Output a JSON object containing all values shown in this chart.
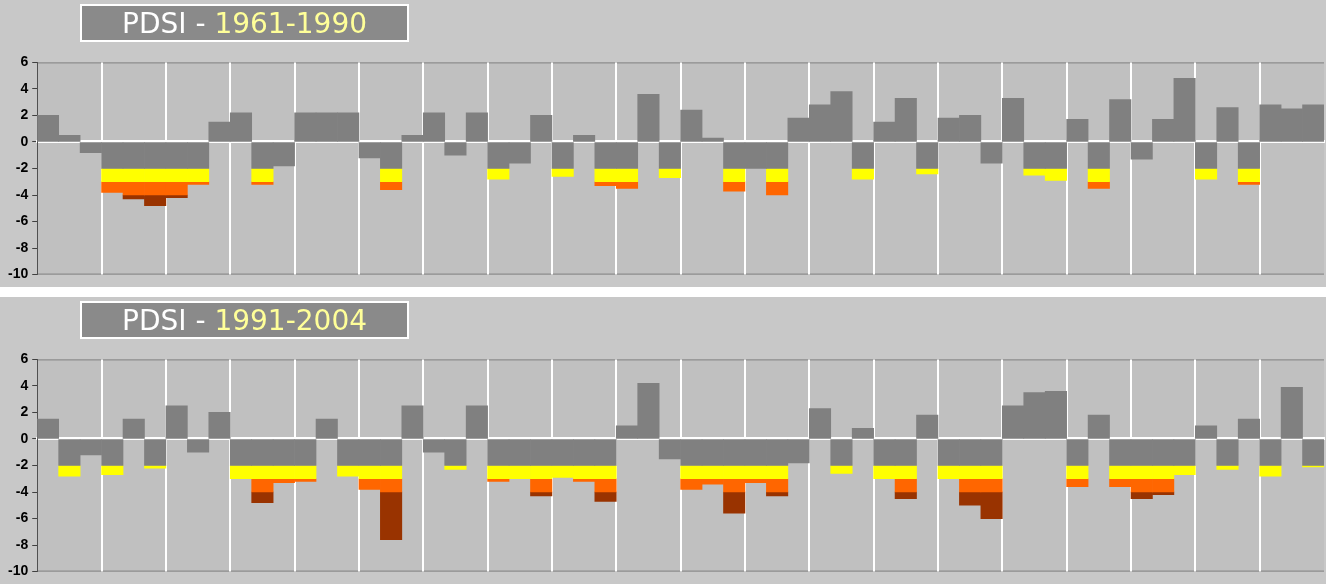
{
  "chart_data": [
    {
      "type": "bar",
      "title": "PDSI - 1961-1990",
      "stacked": true,
      "grid": "x",
      "tick_labels": "y",
      "categories": [
        null,
        null,
        null,
        null,
        null,
        null,
        null,
        null,
        null,
        null,
        null,
        null,
        null,
        null,
        null,
        null,
        null,
        null,
        null,
        null,
        null,
        null,
        null,
        null,
        null,
        null,
        null,
        null,
        null,
        null,
        null,
        null,
        null,
        null,
        null,
        null,
        null,
        null,
        null,
        null,
        null,
        null,
        null,
        null,
        null,
        null,
        null,
        null,
        null,
        null,
        null,
        null,
        null,
        null,
        null,
        null,
        null,
        null,
        null,
        null
      ],
      "ylim": [
        -10,
        6
      ],
      "yticks": [
        -10,
        -8,
        -6,
        -4,
        -2,
        0,
        2,
        4,
        6
      ],
      "series": [
        {
          "color": "#808080",
          "values": [
            2.0,
            0.5,
            -0.8,
            -2,
            -2,
            -2,
            -2,
            -2,
            1.5,
            2.2,
            -2,
            -1.8,
            2.2,
            2.2,
            2.2,
            -1.2,
            -2,
            0.5,
            2.2,
            -1.0,
            2.2,
            -2,
            -1.6,
            2.0,
            -2,
            0.5,
            -2,
            -2,
            3.6,
            -2,
            2.4,
            0.3,
            -2,
            -2,
            -2,
            1.8,
            2.8,
            3.8,
            -2,
            1.5,
            3.3,
            -2,
            1.8,
            2.0,
            -1.6,
            3.3,
            -2,
            -2,
            1.7,
            -2,
            3.2,
            -1.3,
            1.7,
            4.8,
            -2,
            2.6,
            -2,
            2.8,
            2.5,
            2.8
          ]
        },
        {
          "color": "#ffff00",
          "values": [
            null,
            null,
            null,
            -1,
            -1,
            -1,
            -1,
            -1,
            null,
            null,
            -1,
            null,
            null,
            null,
            null,
            null,
            -1,
            null,
            null,
            null,
            null,
            -0.8,
            null,
            null,
            -0.6,
            null,
            -1,
            -1,
            null,
            -0.7,
            null,
            null,
            -1,
            null,
            -1,
            null,
            null,
            null,
            -0.8,
            null,
            null,
            -0.4,
            null,
            null,
            null,
            null,
            -0.5,
            -0.9,
            null,
            -1,
            null,
            null,
            null,
            null,
            -0.8,
            null,
            -1,
            null,
            null,
            null
          ]
        },
        {
          "color": "#ff6600",
          "values": [
            null,
            null,
            null,
            -0.8,
            -1,
            -1,
            -1,
            -0.2,
            null,
            null,
            -0.2,
            null,
            null,
            null,
            null,
            null,
            -0.6,
            null,
            null,
            null,
            null,
            null,
            null,
            null,
            null,
            null,
            -0.3,
            -0.5,
            null,
            null,
            null,
            null,
            -0.7,
            null,
            -1,
            null,
            null,
            null,
            null,
            null,
            null,
            null,
            null,
            null,
            null,
            null,
            null,
            null,
            null,
            -0.5,
            null,
            null,
            null,
            null,
            null,
            null,
            -0.2,
            null,
            null,
            null
          ]
        },
        {
          "color": "#993300",
          "values": [
            null,
            null,
            null,
            null,
            -0.3,
            -0.8,
            -0.2,
            null,
            null,
            null,
            null,
            null,
            null,
            null,
            null,
            null,
            null,
            null,
            null,
            null,
            null,
            null,
            null,
            null,
            null,
            null,
            null,
            null,
            null,
            null,
            null,
            null,
            null,
            null,
            null,
            null,
            null,
            null,
            null,
            null,
            null,
            null,
            null,
            null,
            null,
            null,
            null,
            null,
            null,
            null,
            null,
            null,
            null,
            null,
            null,
            null,
            null,
            null,
            null,
            null
          ]
        }
      ]
    },
    {
      "type": "bar",
      "title": "PDSI - 1991-2004",
      "stacked": true,
      "grid": "x",
      "tick_labels": "y",
      "categories": [
        null,
        null,
        null,
        null,
        null,
        null,
        null,
        null,
        null,
        null,
        null,
        null,
        null,
        null,
        null,
        null,
        null,
        null,
        null,
        null,
        null,
        null,
        null,
        null,
        null,
        null,
        null,
        null,
        null,
        null,
        null,
        null,
        null,
        null,
        null,
        null,
        null,
        null,
        null,
        null,
        null,
        null,
        null,
        null,
        null,
        null,
        null,
        null,
        null,
        null,
        null,
        null,
        null,
        null,
        null,
        null,
        null,
        null,
        null,
        null
      ],
      "ylim": [
        -10,
        6
      ],
      "yticks": [
        -10,
        -8,
        -6,
        -4,
        -2,
        0,
        2,
        4,
        6
      ],
      "series": [
        {
          "color": "#808080",
          "values": [
            1.5,
            -2,
            -1.2,
            -2,
            1.5,
            -2,
            2.5,
            -1.0,
            2.0,
            -2,
            -2,
            -2,
            -2,
            1.5,
            -2,
            -2,
            -2,
            2.5,
            -1.0,
            -2,
            2.5,
            -2,
            -2,
            -2,
            -2,
            -2,
            -2,
            1.0,
            4.2,
            -1.5,
            -2,
            -2,
            -2,
            -2,
            -2,
            -1.8,
            2.3,
            -2,
            0.8,
            -2,
            -2,
            1.8,
            -2,
            -2,
            -2,
            2.5,
            3.5,
            3.6,
            -2,
            1.8,
            -2,
            -2,
            -2,
            -2,
            1.0,
            -2,
            1.5,
            -2,
            3.9,
            -2
          ]
        },
        {
          "color": "#ffff00",
          "values": [
            null,
            -0.8,
            null,
            -0.7,
            null,
            -0.2,
            null,
            null,
            null,
            -1,
            -1,
            -1,
            -1,
            null,
            -0.8,
            -1,
            -1,
            null,
            null,
            -0.3,
            null,
            -1,
            -1,
            -1,
            -0.9,
            -1,
            -1,
            null,
            null,
            null,
            -1,
            -1,
            -1,
            -1,
            -1,
            null,
            null,
            -0.6,
            null,
            -1,
            -1,
            null,
            -1,
            -1,
            -1,
            null,
            null,
            null,
            -1,
            null,
            -1,
            -1,
            -1,
            -0.7,
            null,
            -0.3,
            null,
            -0.8,
            null,
            -0.1
          ]
        },
        {
          "color": "#ff6600",
          "values": [
            null,
            null,
            null,
            null,
            null,
            null,
            null,
            null,
            null,
            null,
            -1,
            -0.3,
            -0.2,
            null,
            null,
            -0.8,
            -1,
            null,
            null,
            null,
            null,
            -0.2,
            null,
            -1,
            null,
            -0.2,
            -1,
            null,
            null,
            null,
            -0.8,
            -0.4,
            -1,
            -0.3,
            -1,
            null,
            null,
            null,
            null,
            null,
            -1,
            null,
            null,
            -1,
            -1,
            null,
            null,
            null,
            -0.6,
            null,
            -0.6,
            -1,
            -1,
            null,
            null,
            null,
            null,
            null,
            null,
            null
          ]
        },
        {
          "color": "#993300",
          "values": [
            null,
            null,
            null,
            null,
            null,
            null,
            null,
            null,
            null,
            null,
            -0.8,
            null,
            null,
            null,
            null,
            null,
            -3.6,
            null,
            null,
            null,
            null,
            null,
            null,
            -0.3,
            null,
            null,
            -0.7,
            null,
            null,
            null,
            null,
            null,
            -1.6,
            null,
            -0.3,
            null,
            null,
            null,
            null,
            null,
            -0.5,
            null,
            null,
            -1,
            -2,
            null,
            null,
            null,
            null,
            null,
            null,
            -0.5,
            -0.2,
            null,
            null,
            null,
            null,
            null,
            null,
            null
          ]
        }
      ]
    }
  ]
}
